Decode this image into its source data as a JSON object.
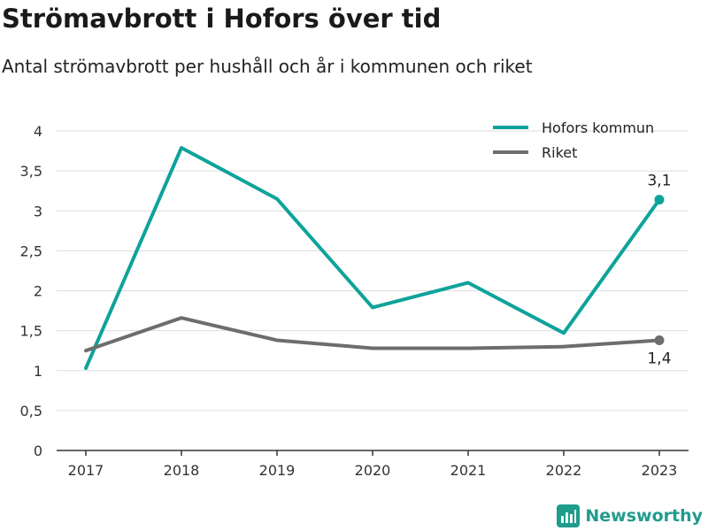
{
  "colors": {
    "hofors": "#0ea39a",
    "riket": "#6d6d6d",
    "grid": "#dddddd",
    "axis": "#333333",
    "brand": "#1f9c8c"
  },
  "brand": {
    "name": "Newsworthy",
    "icon": "newsworthy-logo-icon"
  },
  "chart_data": {
    "type": "line",
    "title": "Strömavbrott i Hofors över tid",
    "subtitle": "Antal strömavbrott per hushåll och år i kommunen och riket",
    "xlabel": "",
    "ylabel": "",
    "categories": [
      "2017",
      "2018",
      "2019",
      "2020",
      "2021",
      "2022",
      "2023"
    ],
    "ylim": [
      0,
      4
    ],
    "yticks": [
      0,
      0.5,
      1,
      1.5,
      2,
      2.5,
      3,
      3.5,
      4
    ],
    "ytick_labels": [
      "0",
      "0,5",
      "1",
      "1,5",
      "2",
      "2,5",
      "3",
      "3,5",
      "4"
    ],
    "grid": true,
    "legend_position": "top-right",
    "series": [
      {
        "name": "Hofors kommun",
        "color": "#0ea39a",
        "values": [
          1.03,
          3.79,
          3.15,
          1.79,
          2.1,
          1.47,
          3.14
        ],
        "end_label": "3,1"
      },
      {
        "name": "Riket",
        "color": "#6d6d6d",
        "values": [
          1.25,
          1.66,
          1.38,
          1.28,
          1.28,
          1.3,
          1.38
        ],
        "end_label": "1,4"
      }
    ]
  }
}
